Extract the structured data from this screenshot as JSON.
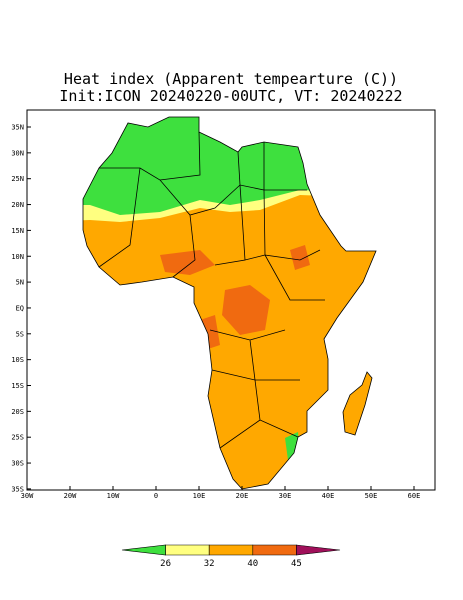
{
  "header": {
    "title": "Heat index (Apparent tempearture (C))",
    "subtitle": "Init:ICON 20240220-00UTC, VT: 20240222"
  },
  "map": {
    "lat_labels": [
      "35N",
      "30N",
      "25N",
      "20N",
      "15N",
      "10N",
      "5N",
      "EQ",
      "5S",
      "10S",
      "15S",
      "20S",
      "25S",
      "30S",
      "35S"
    ],
    "lon_labels": [
      "30W",
      "20W",
      "10W",
      "0",
      "10E",
      "20E",
      "30E",
      "40E",
      "50E",
      "60E"
    ]
  },
  "colorbar": {
    "ticks": [
      26,
      32,
      40,
      45
    ],
    "colors": [
      "#3ee03e",
      "#ffff80",
      "#ffa800",
      "#f06a10",
      "#a0105a"
    ]
  }
}
